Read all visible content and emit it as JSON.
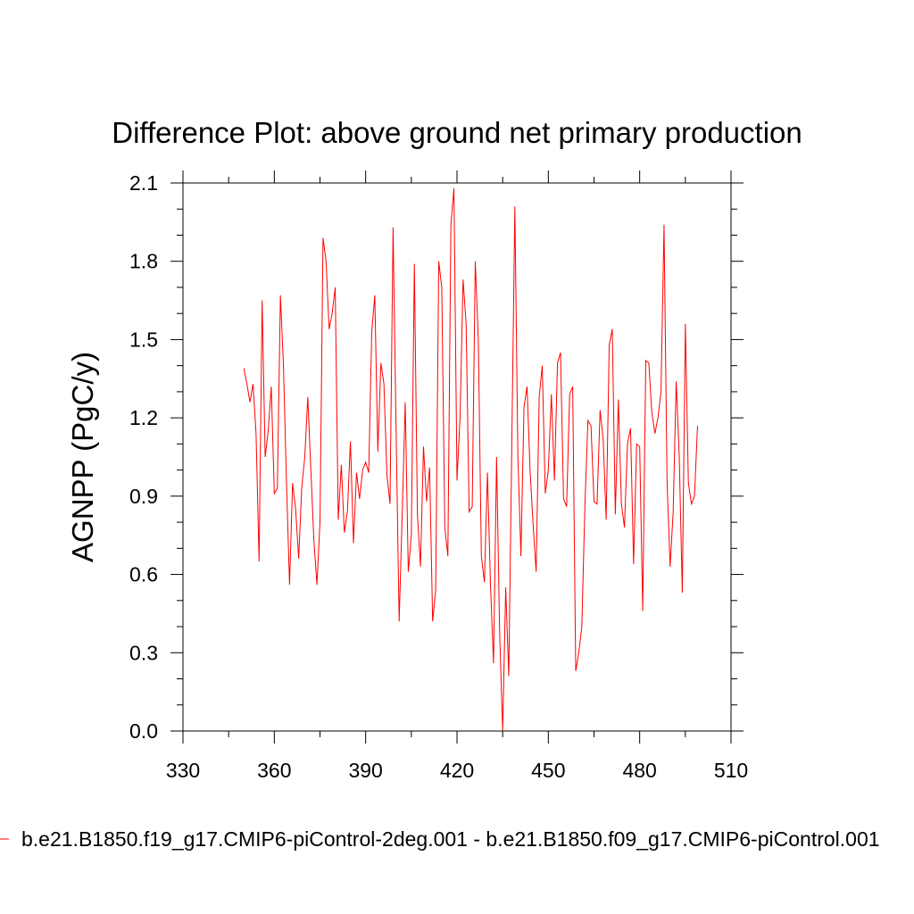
{
  "chart_data": {
    "type": "line",
    "title": "Difference Plot: above ground net primary production",
    "xlabel": "",
    "ylabel": "AGNPP  (PgC/y)",
    "xlim": [
      330,
      510
    ],
    "ylim": [
      0.0,
      2.1
    ],
    "xticks": [
      330,
      360,
      390,
      420,
      450,
      480,
      510
    ],
    "xtick_labels": [
      "330",
      "360",
      "390",
      "420",
      "450",
      "480",
      "510"
    ],
    "yticks": [
      0.0,
      0.3,
      0.6,
      0.9,
      1.2,
      1.5,
      1.8,
      2.1
    ],
    "ytick_labels": [
      "0.0",
      "0.3",
      "0.6",
      "0.9",
      "1.2",
      "1.5",
      "1.8",
      "2.1"
    ],
    "grid": false,
    "legend_position": "bottom",
    "series": [
      {
        "name": "b.e21.B1850.f19_g17.CMIP6-piControl-2deg.001 - b.e21.B1850.f09_g17.CMIP6-piControl.001",
        "color": "#ff0000",
        "x": [
          350,
          351,
          352,
          353,
          354,
          355,
          356,
          357,
          358,
          359,
          360,
          361,
          362,
          363,
          364,
          365,
          366,
          367,
          368,
          369,
          370,
          371,
          372,
          373,
          374,
          375,
          376,
          377,
          378,
          379,
          380,
          381,
          382,
          383,
          384,
          385,
          386,
          387,
          388,
          389,
          390,
          391,
          392,
          393,
          394,
          395,
          396,
          397,
          398,
          399,
          400,
          401,
          402,
          403,
          404,
          405,
          406,
          407,
          408,
          409,
          410,
          411,
          412,
          413,
          414,
          415,
          416,
          417,
          418,
          419,
          420,
          421,
          422,
          423,
          424,
          425,
          426,
          427,
          428,
          429,
          430,
          431,
          432,
          433,
          434,
          435,
          436,
          437,
          438,
          439,
          440,
          441,
          442,
          443,
          444,
          445,
          446,
          447,
          448,
          449,
          450,
          451,
          452,
          453,
          454,
          455,
          456,
          457,
          458,
          459,
          460,
          461,
          462,
          463,
          464,
          465,
          466,
          467,
          468,
          469,
          470,
          471,
          472,
          473,
          474,
          475,
          476,
          477,
          478,
          479,
          480,
          481,
          482,
          483,
          484,
          485,
          486,
          487,
          488,
          489,
          490,
          491,
          492,
          493,
          494,
          495,
          496,
          497,
          498,
          499
        ],
        "y": [
          1.39,
          1.33,
          1.26,
          1.33,
          1.14,
          0.65,
          1.65,
          1.05,
          1.15,
          1.32,
          0.91,
          0.93,
          1.67,
          1.4,
          0.95,
          0.56,
          0.95,
          0.85,
          0.66,
          0.93,
          1.05,
          1.28,
          1.0,
          0.73,
          0.56,
          0.8,
          1.89,
          1.8,
          1.54,
          1.6,
          1.7,
          0.81,
          1.02,
          0.76,
          0.84,
          1.11,
          0.72,
          0.99,
          0.89,
          1.0,
          1.03,
          0.99,
          1.53,
          1.67,
          1.07,
          1.41,
          1.33,
          0.98,
          0.87,
          1.93,
          1.15,
          0.42,
          0.83,
          1.26,
          0.61,
          0.75,
          1.79,
          0.83,
          0.63,
          1.09,
          0.88,
          1.01,
          0.42,
          0.54,
          1.8,
          1.7,
          0.78,
          0.67,
          1.94,
          2.08,
          0.96,
          1.2,
          1.73,
          1.56,
          0.84,
          0.86,
          1.8,
          1.5,
          0.67,
          0.57,
          0.99,
          0.56,
          0.26,
          1.05,
          0.38,
          0.0,
          0.55,
          0.21,
          1.1,
          2.01,
          1.05,
          0.67,
          1.24,
          1.32,
          1.0,
          0.79,
          0.61,
          1.28,
          1.4,
          0.91,
          1.0,
          1.29,
          0.96,
          1.41,
          1.45,
          0.89,
          0.86,
          1.29,
          1.32,
          0.23,
          0.3,
          0.4,
          0.86,
          1.19,
          1.17,
          0.88,
          0.87,
          1.23,
          1.12,
          0.81,
          1.48,
          1.54,
          0.83,
          1.27,
          0.87,
          0.78,
          1.1,
          1.16,
          0.64,
          1.1,
          1.09,
          0.46,
          1.42,
          1.41,
          1.22,
          1.14,
          1.2,
          1.3,
          1.94,
          0.95,
          0.63,
          0.84,
          1.34,
          1.05,
          0.53,
          1.56,
          0.95,
          0.87,
          0.9,
          1.17
        ]
      }
    ]
  }
}
